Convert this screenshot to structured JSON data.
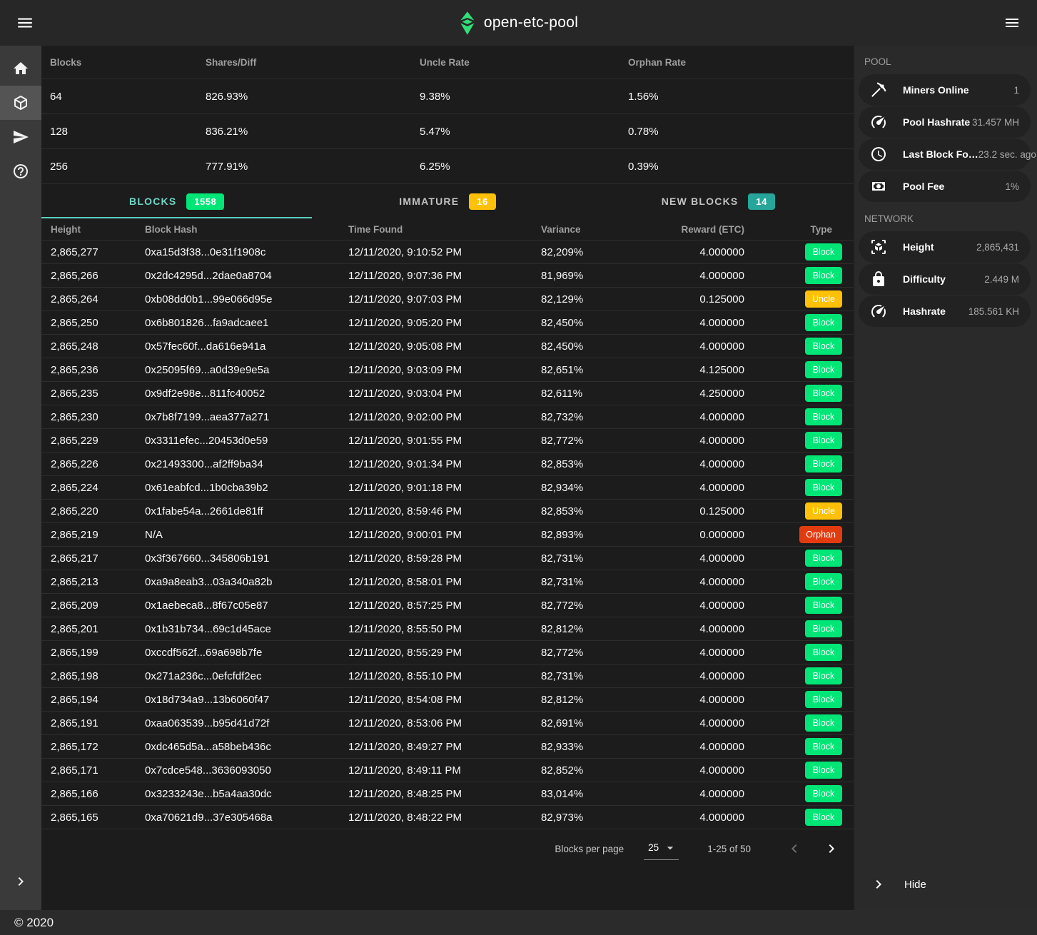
{
  "app_bar": {
    "title": "open-etc-pool"
  },
  "footer": {
    "copyright": "© 2020"
  },
  "colors": {
    "brand_green": "#2fe077",
    "tab_active_teal": "#57d1c0",
    "block_green": "#00e676",
    "uncle_amber": "#ffc107",
    "new_blocks_teal": "#26a69a",
    "orphan_red": "#e33b10"
  },
  "left_rail": {
    "items": [
      {
        "id": "home",
        "icon": "home-icon",
        "active": false
      },
      {
        "id": "blocks",
        "icon": "cube-icon",
        "active": true
      },
      {
        "id": "payments",
        "icon": "send-icon",
        "active": false
      },
      {
        "id": "help",
        "icon": "help-icon",
        "active": false
      }
    ]
  },
  "stats_table": {
    "headers": [
      "Blocks",
      "Shares/Diff",
      "Uncle Rate",
      "Orphan Rate"
    ],
    "rows": [
      [
        "64",
        "826.93%",
        "9.38%",
        "1.56%"
      ],
      [
        "128",
        "836.21%",
        "5.47%",
        "0.78%"
      ],
      [
        "256",
        "777.91%",
        "6.25%",
        "0.39%"
      ]
    ]
  },
  "tabs": [
    {
      "label": "BLOCKS",
      "count": "1558",
      "badge_color": "#00e676",
      "active": true
    },
    {
      "label": "IMMATURE",
      "count": "16",
      "badge_color": "#ffc107",
      "active": false
    },
    {
      "label": "NEW BLOCKS",
      "count": "14",
      "badge_color": "#26a69a",
      "active": false
    }
  ],
  "blocks_table": {
    "headers": [
      "Height",
      "Block Hash",
      "Time Found",
      "Variance",
      "Reward (ETC)",
      "Type"
    ],
    "type_colors": {
      "Block": "#00e676",
      "Uncle": "#ffc107",
      "Orphan": "#e33b10"
    },
    "rows": [
      [
        "2,865,277",
        "0xa15d3f38...0e31f1908c",
        "12/11/2020, 9:10:52 PM",
        "82,209%",
        "4.000000",
        "Block"
      ],
      [
        "2,865,266",
        "0x2dc4295d...2dae0a8704",
        "12/11/2020, 9:07:36 PM",
        "81,969%",
        "4.000000",
        "Block"
      ],
      [
        "2,865,264",
        "0xb08dd0b1...99e066d95e",
        "12/11/2020, 9:07:03 PM",
        "82,129%",
        "0.125000",
        "Uncle"
      ],
      [
        "2,865,250",
        "0x6b801826...fa9adcaee1",
        "12/11/2020, 9:05:20 PM",
        "82,450%",
        "4.000000",
        "Block"
      ],
      [
        "2,865,248",
        "0x57fec60f...da616e941a",
        "12/11/2020, 9:05:08 PM",
        "82,450%",
        "4.000000",
        "Block"
      ],
      [
        "2,865,236",
        "0x25095f69...a0d39e9e5a",
        "12/11/2020, 9:03:09 PM",
        "82,651%",
        "4.125000",
        "Block"
      ],
      [
        "2,865,235",
        "0x9df2e98e...811fc40052",
        "12/11/2020, 9:03:04 PM",
        "82,611%",
        "4.250000",
        "Block"
      ],
      [
        "2,865,230",
        "0x7b8f7199...aea377a271",
        "12/11/2020, 9:02:00 PM",
        "82,732%",
        "4.000000",
        "Block"
      ],
      [
        "2,865,229",
        "0x3311efec...20453d0e59",
        "12/11/2020, 9:01:55 PM",
        "82,772%",
        "4.000000",
        "Block"
      ],
      [
        "2,865,226",
        "0x21493300...af2ff9ba34",
        "12/11/2020, 9:01:34 PM",
        "82,853%",
        "4.000000",
        "Block"
      ],
      [
        "2,865,224",
        "0x61eabfcd...1b0cba39b2",
        "12/11/2020, 9:01:18 PM",
        "82,934%",
        "4.000000",
        "Block"
      ],
      [
        "2,865,220",
        "0x1fabe54a...2661de81ff",
        "12/11/2020, 8:59:46 PM",
        "82,853%",
        "0.125000",
        "Uncle"
      ],
      [
        "2,865,219",
        "N/A",
        "12/11/2020, 9:00:01 PM",
        "82,893%",
        "0.000000",
        "Orphan"
      ],
      [
        "2,865,217",
        "0x3f367660...345806b191",
        "12/11/2020, 8:59:28 PM",
        "82,731%",
        "4.000000",
        "Block"
      ],
      [
        "2,865,213",
        "0xa9a8eab3...03a340a82b",
        "12/11/2020, 8:58:01 PM",
        "82,731%",
        "4.000000",
        "Block"
      ],
      [
        "2,865,209",
        "0x1aebeca8...8f67c05e87",
        "12/11/2020, 8:57:25 PM",
        "82,772%",
        "4.000000",
        "Block"
      ],
      [
        "2,865,201",
        "0x1b31b734...69c1d45ace",
        "12/11/2020, 8:55:50 PM",
        "82,812%",
        "4.000000",
        "Block"
      ],
      [
        "2,865,199",
        "0xccdf562f...69a698b7fe",
        "12/11/2020, 8:55:29 PM",
        "82,772%",
        "4.000000",
        "Block"
      ],
      [
        "2,865,198",
        "0x271a236c...0efcfdf2ec",
        "12/11/2020, 8:55:10 PM",
        "82,731%",
        "4.000000",
        "Block"
      ],
      [
        "2,865,194",
        "0x18d734a9...13b6060f47",
        "12/11/2020, 8:54:08 PM",
        "82,812%",
        "4.000000",
        "Block"
      ],
      [
        "2,865,191",
        "0xaa063539...b95d41d72f",
        "12/11/2020, 8:53:06 PM",
        "82,691%",
        "4.000000",
        "Block"
      ],
      [
        "2,865,172",
        "0xdc465d5a...a58beb436c",
        "12/11/2020, 8:49:27 PM",
        "82,933%",
        "4.000000",
        "Block"
      ],
      [
        "2,865,171",
        "0x7cdce548...3636093050",
        "12/11/2020, 8:49:11 PM",
        "82,852%",
        "4.000000",
        "Block"
      ],
      [
        "2,865,166",
        "0x3233243e...b5a4aa30dc",
        "12/11/2020, 8:48:25 PM",
        "83,014%",
        "4.000000",
        "Block"
      ],
      [
        "2,865,165",
        "0xa70621d9...37e305468a",
        "12/11/2020, 8:48:22 PM",
        "82,973%",
        "4.000000",
        "Block"
      ]
    ]
  },
  "pagination": {
    "label": "Blocks per page",
    "per_page": "25",
    "range": "1-25 of 50"
  },
  "sidebar": {
    "pool": {
      "title": "POOL",
      "items": [
        {
          "icon": "pickaxe-icon",
          "label": "Miners Online",
          "value": "1"
        },
        {
          "icon": "speedometer-icon",
          "label": "Pool Hashrate",
          "value": "31.457 MH"
        },
        {
          "icon": "clock-icon",
          "label": "Last Block Fo…",
          "value": "23.2 sec. ago"
        },
        {
          "icon": "cash-icon",
          "label": "Pool Fee",
          "value": "1%"
        }
      ]
    },
    "network": {
      "title": "NETWORK",
      "items": [
        {
          "icon": "cube-scan-icon",
          "label": "Height",
          "value": "2,865,431"
        },
        {
          "icon": "lock-icon",
          "label": "Difficulty",
          "value": "2.449 M"
        },
        {
          "icon": "speedometer-icon",
          "label": "Hashrate",
          "value": "185.561 KH"
        }
      ]
    },
    "hide_label": "Hide"
  }
}
